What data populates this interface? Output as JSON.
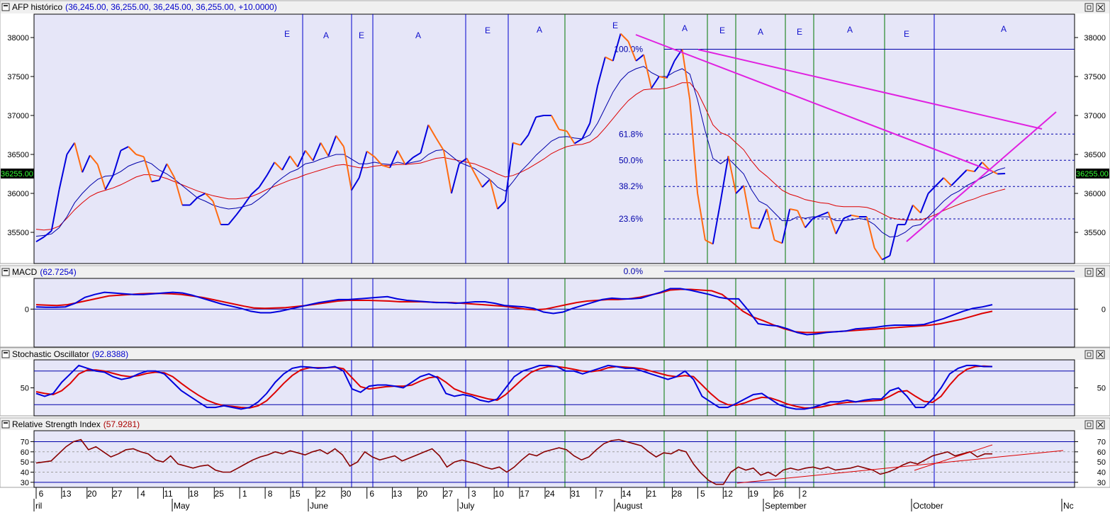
{
  "panes": [
    {
      "title": "AFP histórico",
      "value": "(36,245.00, 36,255.00, 36,245.00, 36,255.00, +10.0000)",
      "valueColor": "#0000cc"
    },
    {
      "title": "MACD",
      "value": "(62.7254)",
      "valueColor": "#0000cc"
    },
    {
      "title": "Stochastic Oscillator",
      "value": "(92.8388)",
      "valueColor": "#0000cc"
    },
    {
      "title": "Relative Strength Index",
      "value": "(57.9281)",
      "valueColor": "#aa0000"
    }
  ],
  "price_marker": "36255.00",
  "date_ticks": [
    "6",
    "13",
    "20",
    "27",
    "4",
    "11",
    "18",
    "25",
    "1",
    "8",
    "15",
    "22",
    "30",
    "6",
    "13",
    "20",
    "27",
    "3",
    "10",
    "17",
    "24",
    "31",
    "7",
    "14",
    "21",
    "28",
    "5",
    "12",
    "19",
    "26",
    "2"
  ],
  "month_labels": [
    "ril",
    "May",
    "June",
    "July",
    "August",
    "September",
    "October",
    "Nc"
  ],
  "wave_labels": [
    "E",
    "A",
    "E",
    "A",
    "E",
    "A",
    "E",
    "A",
    "E",
    "A",
    "E",
    "A",
    "E",
    "A"
  ],
  "fib_labels": [
    "100.0%",
    "61.8%",
    "50.0%",
    "38.2%",
    "23.6%",
    "0.0%"
  ],
  "colors": {
    "up": "#0000dd",
    "down": "#ff6a10",
    "trend": "#e020e0",
    "ma_blue": "#0000aa",
    "ma_red": "#dd0000",
    "pane_bg": "#e6e6f8",
    "rsi": "#880000",
    "div_blue": "#0000cc",
    "div_green": "#007700"
  },
  "chart_data": [
    {
      "type": "line",
      "title": "AFP histórico",
      "ylim": [
        35100,
        38300
      ],
      "yticks": [
        "35500",
        "36000",
        "36500",
        "37000",
        "37500",
        "38000"
      ],
      "fibonacci": {
        "high": 37850,
        "low": 35000,
        "levels": [
          "100.0%",
          "61.8%",
          "50.0%",
          "38.2%",
          "23.6%",
          "0.0%"
        ]
      },
      "series": [
        {
          "values": [
            35380,
            35440,
            35520,
            36050,
            36500,
            36650,
            36270,
            36490,
            36370,
            36050,
            36230,
            36550,
            36600,
            36500,
            36470,
            36150,
            36170,
            36380,
            36200,
            35850,
            35850,
            35950,
            36000,
            35900,
            35600,
            35600,
            35720,
            35850,
            35990,
            36080,
            36230,
            36400,
            36300,
            36480,
            36340,
            36550,
            36420,
            36650,
            36480,
            36740,
            36600,
            36040,
            36200,
            36540,
            36470,
            36360,
            36330,
            36550,
            36370,
            36460,
            36520,
            36880,
            36710,
            36550,
            36000,
            36380,
            36450,
            36260,
            36080,
            36180,
            35800,
            35900,
            36650,
            36620,
            36750,
            36980,
            37000,
            37000,
            36820,
            36800,
            36640,
            36700,
            36900,
            37380,
            37750,
            37700,
            38050,
            37950,
            37700,
            37780,
            37350,
            37500,
            37480,
            37700,
            37850,
            37200,
            36000,
            35400,
            35350,
            35900,
            36480,
            36000,
            36100,
            35560,
            35550,
            35800,
            35400,
            35360,
            35800,
            35780,
            35560,
            35680,
            35720,
            35760,
            35480,
            35680,
            35720,
            35700,
            35700,
            35300,
            35150,
            35200,
            35600,
            35600,
            35850,
            35750,
            36000,
            36100,
            36200,
            36100,
            36200,
            36300,
            36280,
            36400,
            36300,
            36250,
            36255
          ]
        },
        {
          "values": [
            35450,
            35460,
            35480,
            35560,
            35700,
            35880,
            36000,
            36100,
            36180,
            36220,
            36230,
            36280,
            36350,
            36390,
            36420,
            36380,
            36300,
            36250,
            36180,
            36100,
            36020,
            35940,
            35900,
            35850,
            35820,
            35800,
            35810,
            35830,
            35860,
            35930,
            36010,
            36120,
            36200,
            36270,
            36310,
            36380,
            36400,
            36440,
            36470,
            36500,
            36500,
            36440,
            36380,
            36380,
            36400,
            36380,
            36370,
            36400,
            36380,
            36400,
            36420,
            36500,
            36550,
            36560,
            36480,
            36400,
            36360,
            36320,
            36250,
            36180,
            36080,
            36030,
            36150,
            36280,
            36380,
            36490,
            36580,
            36670,
            36720,
            36730,
            36710,
            36700,
            36750,
            36900,
            37100,
            37300,
            37450,
            37550,
            37600,
            37630,
            37550,
            37500,
            37500,
            37560,
            37600,
            37530,
            37200,
            36800,
            36450,
            36380,
            36450,
            36350,
            36250,
            36050,
            35900,
            35850,
            35750,
            35650,
            35650,
            35700,
            35680,
            35700,
            35700,
            35700,
            35650,
            35650,
            35660,
            35680,
            35660,
            35600,
            35500,
            35440,
            35450,
            35500,
            35580,
            35600,
            35700,
            35800,
            35900,
            35980,
            36030,
            36100,
            36150,
            36200,
            36250,
            36300,
            36330
          ]
        },
        {
          "values": [
            35540,
            35530,
            35540,
            35580,
            35680,
            35790,
            35880,
            35960,
            36010,
            36040,
            36070,
            36110,
            36160,
            36210,
            36240,
            36240,
            36220,
            36190,
            36150,
            36110,
            36070,
            36030,
            36000,
            35970,
            35950,
            35930,
            35930,
            35940,
            35960,
            36000,
            36050,
            36090,
            36130,
            36170,
            36200,
            36240,
            36270,
            36300,
            36330,
            36360,
            36370,
            36350,
            36330,
            36330,
            36350,
            36360,
            36360,
            36370,
            36370,
            36380,
            36390,
            36420,
            36450,
            36460,
            36440,
            36420,
            36400,
            36380,
            36340,
            36300,
            36250,
            36210,
            36230,
            36270,
            36320,
            36380,
            36440,
            36510,
            36560,
            36600,
            36620,
            36630,
            36660,
            36730,
            36840,
            36960,
            37080,
            37190,
            37270,
            37330,
            37340,
            37340,
            37350,
            37380,
            37420,
            37420,
            37300,
            37100,
            36880,
            36780,
            36740,
            36650,
            36560,
            36420,
            36300,
            36220,
            36130,
            36040,
            35990,
            35960,
            35920,
            35900,
            35880,
            35870,
            35840,
            35830,
            35830,
            35830,
            35820,
            35790,
            35740,
            35690,
            35670,
            35660,
            35660,
            35660,
            35690,
            35730,
            35780,
            35820,
            35860,
            35900,
            35930,
            35970,
            36000,
            36030,
            36055
          ]
        }
      ]
    },
    {
      "type": "line",
      "title": "MACD",
      "ylim": [
        -520,
        420
      ],
      "yticks": [
        "0"
      ],
      "series": [
        {
          "values": [
            30,
            25,
            25,
            30,
            80,
            160,
            200,
            230,
            220,
            210,
            200,
            200,
            210,
            220,
            230,
            220,
            190,
            150,
            110,
            70,
            40,
            10,
            -30,
            -50,
            -50,
            -30,
            0,
            30,
            60,
            90,
            110,
            130,
            130,
            140,
            150,
            160,
            170,
            140,
            120,
            110,
            100,
            90,
            90,
            80,
            90,
            100,
            100,
            80,
            50,
            40,
            30,
            10,
            -40,
            -60,
            -40,
            10,
            50,
            90,
            130,
            150,
            140,
            140,
            150,
            190,
            230,
            280,
            280,
            260,
            230,
            200,
            160,
            140,
            140,
            -20,
            -200,
            -220,
            -230,
            -270,
            -320,
            -350,
            -340,
            -320,
            -310,
            -300,
            -270,
            -260,
            -250,
            -230,
            -220,
            -220,
            -220,
            -210,
            -170,
            -130,
            -80,
            -30,
            10,
            30,
            60
          ]
        },
        {
          "values": [
            60,
            55,
            50,
            60,
            90,
            120,
            150,
            180,
            190,
            200,
            210,
            215,
            215,
            210,
            200,
            180,
            160,
            130,
            100,
            70,
            40,
            15,
            10,
            15,
            20,
            35,
            50,
            70,
            90,
            110,
            120,
            120,
            120,
            115,
            110,
            100,
            100,
            100,
            95,
            90,
            90,
            80,
            70,
            60,
            50,
            40,
            20,
            0,
            -10,
            0,
            30,
            60,
            90,
            110,
            120,
            130,
            130,
            140,
            160,
            190,
            220,
            260,
            270,
            270,
            260,
            250,
            200,
            90,
            -30,
            -110,
            -160,
            -220,
            -270,
            -310,
            -320,
            -320,
            -315,
            -310,
            -300,
            -290,
            -280,
            -270,
            -260,
            -250,
            -240,
            -230,
            -220,
            -200,
            -170,
            -140,
            -100,
            -60,
            -30
          ]
        }
      ]
    },
    {
      "type": "line",
      "title": "Stochastic Oscillator",
      "ylim": [
        0,
        100
      ],
      "yticks": [
        "50"
      ],
      "reference_lines": [
        80,
        20
      ],
      "series": [
        {
          "values": [
            40,
            35,
            40,
            60,
            75,
            90,
            85,
            80,
            78,
            70,
            65,
            68,
            75,
            80,
            80,
            75,
            60,
            45,
            35,
            25,
            15,
            15,
            18,
            15,
            12,
            15,
            25,
            40,
            60,
            75,
            85,
            88,
            87,
            85,
            86,
            88,
            80,
            48,
            42,
            53,
            55,
            55,
            53,
            50,
            60,
            70,
            75,
            68,
            40,
            35,
            38,
            35,
            28,
            25,
            30,
            50,
            70,
            80,
            85,
            90,
            90,
            88,
            80,
            80,
            75,
            80,
            85,
            90,
            88,
            85,
            85,
            80,
            75,
            70,
            65,
            70,
            80,
            65,
            35,
            25,
            15,
            15,
            22,
            30,
            38,
            40,
            30,
            20,
            15,
            12,
            12,
            15,
            20,
            25,
            25,
            28,
            25,
            28,
            30,
            30,
            45,
            50,
            35,
            15,
            15,
            30,
            50,
            75,
            85,
            90,
            90,
            88,
            88
          ]
        },
        {
          "values": [
            43,
            40,
            38,
            45,
            58,
            75,
            82,
            82,
            80,
            76,
            72,
            70,
            72,
            76,
            78,
            77,
            70,
            58,
            47,
            37,
            28,
            22,
            18,
            17,
            15,
            14,
            18,
            27,
            42,
            58,
            72,
            82,
            86,
            86,
            86,
            87,
            84,
            68,
            52,
            48,
            50,
            52,
            53,
            53,
            55,
            62,
            68,
            70,
            60,
            48,
            42,
            38,
            34,
            30,
            28,
            38,
            52,
            66,
            78,
            84,
            88,
            88,
            86,
            83,
            80,
            79,
            81,
            86,
            88,
            87,
            86,
            84,
            80,
            76,
            72,
            70,
            72,
            70,
            55,
            40,
            27,
            20,
            19,
            23,
            29,
            33,
            32,
            27,
            21,
            17,
            14,
            14,
            16,
            19,
            22,
            24,
            25,
            26,
            27,
            28,
            35,
            43,
            45,
            35,
            26,
            24,
            35,
            55,
            72,
            83,
            88,
            89,
            88
          ]
        }
      ]
    },
    {
      "type": "line",
      "title": "Relative Strength Index",
      "ylim": [
        25,
        78
      ],
      "yticks": [
        "30",
        "40",
        "50",
        "60",
        "70"
      ],
      "reference_lines": [
        70,
        60,
        50,
        40,
        30
      ],
      "series": [
        {
          "values": [
            49,
            50,
            51,
            58,
            65,
            70,
            72,
            62,
            65,
            60,
            55,
            58,
            62,
            63,
            60,
            58,
            52,
            50,
            56,
            48,
            46,
            44,
            46,
            47,
            42,
            40,
            40,
            44,
            48,
            52,
            55,
            57,
            60,
            58,
            61,
            59,
            57,
            60,
            62,
            58,
            63,
            57,
            46,
            50,
            60,
            55,
            52,
            54,
            56,
            51,
            54,
            57,
            60,
            63,
            56,
            45,
            50,
            52,
            50,
            48,
            45,
            43,
            45,
            40,
            45,
            52,
            58,
            56,
            60,
            62,
            64,
            62,
            56,
            52,
            55,
            62,
            68,
            71,
            72,
            70,
            68,
            66,
            60,
            55,
            59,
            58,
            62,
            60,
            48,
            39,
            32,
            28,
            28,
            40,
            45,
            42,
            44,
            37,
            40,
            36,
            42,
            44,
            42,
            44,
            45,
            43,
            45,
            42,
            43,
            44,
            46,
            44,
            42,
            38,
            40,
            43,
            47,
            50,
            48,
            52,
            56,
            58,
            60,
            56,
            58,
            60,
            55,
            58,
            58
          ]
        }
      ]
    }
  ]
}
